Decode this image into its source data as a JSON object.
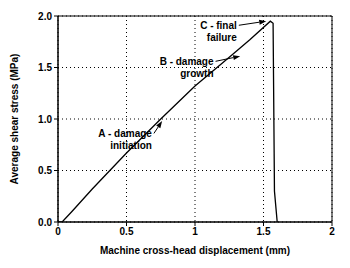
{
  "chart_data": {
    "type": "line",
    "x_label": "Machine cross-head displacement (mm)",
    "y_label": "Average shear stress (MPa)",
    "x": [
      0,
      0.03,
      0.1,
      0.25,
      0.5,
      0.75,
      1.0,
      1.25,
      1.4,
      1.55,
      1.57,
      1.58,
      1.6
    ],
    "values": [
      0,
      0.0,
      0.1,
      0.32,
      0.67,
      1.0,
      1.32,
      1.6,
      1.77,
      1.95,
      1.93,
      0.3,
      0.0
    ],
    "color": "#000000",
    "xlim": [
      0,
      2
    ],
    "xticks": [
      0,
      0.5,
      1,
      1.5,
      2
    ],
    "ylim": [
      0,
      2
    ],
    "yticks": [
      {
        "value": 0,
        "label": "0.0"
      },
      0.5,
      {
        "value": 1,
        "label": "1.0"
      },
      1.5,
      {
        "value": 2,
        "label": "2.0"
      }
    ],
    "grid": true,
    "annotations": [
      {
        "text": "A - damage\ninitiation",
        "text_at": [
          0.7,
          0.86
        ],
        "point": [
          0.76,
          0.98
        ]
      },
      {
        "text": "B - damage\ngrowth",
        "text_at": [
          1.15,
          1.56
        ],
        "point": [
          1.33,
          1.61
        ]
      },
      {
        "text": "C - final\nfailure",
        "text_at": [
          1.32,
          1.91
        ],
        "point": [
          1.52,
          1.95
        ]
      }
    ]
  }
}
